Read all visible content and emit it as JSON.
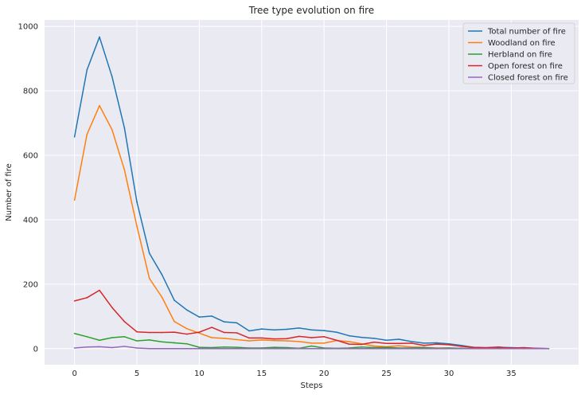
{
  "chart_data": {
    "type": "line",
    "title": "Tree type evolution on fire",
    "xlabel": "Steps",
    "ylabel": "Number of fire",
    "xlim": [
      -2.4,
      40.4
    ],
    "ylim": [
      -50,
      1020
    ],
    "xticks": [
      0,
      5,
      10,
      15,
      20,
      25,
      30,
      35
    ],
    "yticks": [
      0,
      200,
      400,
      600,
      800,
      1000
    ],
    "grid": true,
    "legend_position": "top-right",
    "x": [
      0,
      1,
      2,
      3,
      4,
      5,
      6,
      7,
      8,
      9,
      10,
      11,
      12,
      13,
      14,
      15,
      16,
      17,
      18,
      19,
      20,
      21,
      22,
      23,
      24,
      25,
      26,
      27,
      28,
      29,
      30,
      31,
      32,
      33,
      34,
      35,
      36,
      37,
      38
    ],
    "series": [
      {
        "name": "Total number of fire",
        "color": "#1f77b4",
        "values": [
          657,
          865,
          967,
          845,
          685,
          455,
          296,
          230,
          150,
          120,
          98,
          101,
          83,
          80,
          55,
          61,
          58,
          60,
          64,
          58,
          56,
          51,
          40,
          35,
          32,
          26,
          29,
          22,
          17,
          18,
          15,
          10,
          4,
          2,
          4,
          3,
          2,
          1,
          0
        ]
      },
      {
        "name": "Woodland on fire",
        "color": "#ff7f0e",
        "values": [
          461,
          665,
          754,
          680,
          555,
          380,
          218,
          160,
          84,
          62,
          48,
          34,
          32,
          28,
          24,
          27,
          25,
          24,
          22,
          17,
          17,
          25,
          22,
          15,
          8,
          6,
          9,
          5,
          4,
          2,
          2,
          1,
          1,
          1,
          0,
          0,
          0,
          0,
          0
        ]
      },
      {
        "name": "Herbland on fire",
        "color": "#2ca02c",
        "values": [
          47,
          37,
          26,
          34,
          37,
          24,
          27,
          21,
          18,
          15,
          4,
          3,
          5,
          4,
          2,
          2,
          4,
          3,
          1,
          8,
          2,
          1,
          2,
          5,
          3,
          4,
          2,
          2,
          3,
          1,
          2,
          1,
          1,
          0,
          1,
          0,
          0,
          0,
          0
        ]
      },
      {
        "name": "Open forest on fire",
        "color": "#d62728",
        "values": [
          148,
          158,
          181,
          128,
          84,
          52,
          50,
          50,
          51,
          45,
          51,
          66,
          50,
          49,
          33,
          33,
          30,
          31,
          38,
          34,
          37,
          26,
          14,
          13,
          20,
          16,
          16,
          17,
          10,
          14,
          12,
          7,
          4,
          3,
          5,
          2,
          3,
          1,
          0
        ]
      },
      {
        "name": "Closed forest on fire",
        "color": "#9467bd",
        "values": [
          2,
          5,
          6,
          3,
          7,
          2,
          0,
          0,
          0,
          0,
          0,
          0,
          0,
          0,
          0,
          0,
          0,
          0,
          0,
          0,
          0,
          0,
          0,
          0,
          0,
          0,
          0,
          0,
          0,
          0,
          0,
          0,
          0,
          0,
          0,
          0,
          0,
          0,
          0
        ]
      }
    ]
  }
}
